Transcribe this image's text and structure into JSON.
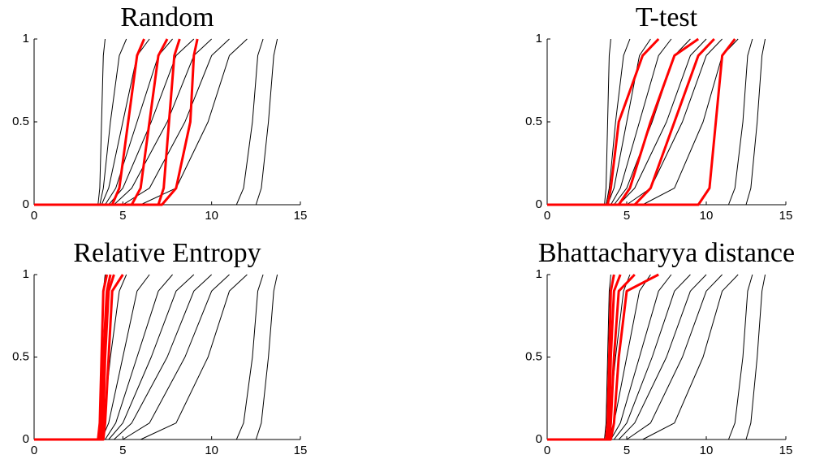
{
  "chart_data": [
    {
      "type": "line",
      "title": "Random",
      "xlim": [
        0,
        15
      ],
      "ylim": [
        0,
        1
      ],
      "xticks": [
        0,
        5,
        10,
        15
      ],
      "yticks": [
        0,
        0.5,
        1
      ],
      "series": [
        {
          "color": "#000000",
          "x": [
            0,
            3.6,
            3.7,
            3.8,
            3.9,
            4.0
          ],
          "values": [
            0,
            0,
            0.1,
            0.5,
            0.9,
            1
          ]
        },
        {
          "color": "#000000",
          "x": [
            0,
            3.7,
            3.9,
            4.3,
            4.8,
            5.2
          ],
          "values": [
            0,
            0,
            0.1,
            0.5,
            0.9,
            1
          ]
        },
        {
          "color": "#000000",
          "x": [
            0,
            3.8,
            4.2,
            5.0,
            5.8,
            6.5
          ],
          "values": [
            0,
            0,
            0.1,
            0.5,
            0.9,
            1
          ]
        },
        {
          "color": "#000000",
          "x": [
            0,
            4.0,
            4.6,
            5.8,
            7.0,
            7.8
          ],
          "values": [
            0,
            0,
            0.1,
            0.5,
            0.9,
            1
          ]
        },
        {
          "color": "#000000",
          "x": [
            0,
            4.2,
            5.0,
            6.6,
            8.0,
            9.0
          ],
          "values": [
            0,
            0,
            0.1,
            0.5,
            0.9,
            1
          ]
        },
        {
          "color": "#000000",
          "x": [
            0,
            4.5,
            5.5,
            7.5,
            9.0,
            10.0
          ],
          "values": [
            0,
            0,
            0.1,
            0.5,
            0.9,
            1
          ]
        },
        {
          "color": "#000000",
          "x": [
            0,
            5.0,
            6.5,
            8.5,
            10.0,
            11.0
          ],
          "values": [
            0,
            0,
            0.1,
            0.5,
            0.9,
            1
          ]
        },
        {
          "color": "#000000",
          "x": [
            0,
            6.0,
            8.0,
            9.8,
            11.0,
            12.0
          ],
          "values": [
            0,
            0,
            0.1,
            0.5,
            0.9,
            1
          ]
        },
        {
          "color": "#000000",
          "x": [
            0,
            11.4,
            11.8,
            12.3,
            12.6,
            12.9
          ],
          "values": [
            0,
            0,
            0.1,
            0.5,
            0.9,
            1
          ]
        },
        {
          "color": "#000000",
          "x": [
            0,
            12.5,
            12.8,
            13.2,
            13.5,
            13.7
          ],
          "values": [
            0,
            0,
            0.1,
            0.5,
            0.9,
            1
          ]
        },
        {
          "color": "#ff0000",
          "x": [
            0,
            4.4,
            4.8,
            5.3,
            5.8,
            6.2
          ],
          "values": [
            0,
            0,
            0.1,
            0.5,
            0.9,
            1
          ]
        },
        {
          "color": "#ff0000",
          "x": [
            0,
            5.5,
            6.0,
            6.5,
            7.0,
            7.5
          ],
          "values": [
            0,
            0,
            0.1,
            0.5,
            0.9,
            1
          ]
        },
        {
          "color": "#ff0000",
          "x": [
            0,
            7.0,
            7.3,
            7.6,
            7.9,
            8.2
          ],
          "values": [
            0,
            0,
            0.1,
            0.5,
            0.9,
            1
          ]
        },
        {
          "color": "#ff0000",
          "x": [
            0,
            7.2,
            8.0,
            8.8,
            9.0,
            9.2
          ],
          "values": [
            0,
            0,
            0.1,
            0.5,
            0.9,
            1
          ]
        }
      ]
    },
    {
      "type": "line",
      "title": "T-test",
      "xlim": [
        0,
        15
      ],
      "ylim": [
        0,
        1
      ],
      "xticks": [
        0,
        5,
        10,
        15
      ],
      "yticks": [
        0,
        0.5,
        1
      ],
      "series": [
        {
          "color": "#000000",
          "x": [
            0,
            3.6,
            3.7,
            3.8,
            3.9,
            4.0
          ],
          "values": [
            0,
            0,
            0.1,
            0.5,
            0.9,
            1
          ]
        },
        {
          "color": "#000000",
          "x": [
            0,
            3.7,
            3.9,
            4.3,
            4.8,
            5.2
          ],
          "values": [
            0,
            0,
            0.1,
            0.5,
            0.9,
            1
          ]
        },
        {
          "color": "#000000",
          "x": [
            0,
            3.8,
            4.2,
            5.0,
            5.8,
            6.5
          ],
          "values": [
            0,
            0,
            0.1,
            0.5,
            0.9,
            1
          ]
        },
        {
          "color": "#000000",
          "x": [
            0,
            4.0,
            4.6,
            5.8,
            7.0,
            7.8
          ],
          "values": [
            0,
            0,
            0.1,
            0.5,
            0.9,
            1
          ]
        },
        {
          "color": "#000000",
          "x": [
            0,
            4.2,
            5.0,
            6.6,
            8.0,
            9.0
          ],
          "values": [
            0,
            0,
            0.1,
            0.5,
            0.9,
            1
          ]
        },
        {
          "color": "#000000",
          "x": [
            0,
            4.5,
            5.5,
            7.5,
            9.0,
            10.0
          ],
          "values": [
            0,
            0,
            0.1,
            0.5,
            0.9,
            1
          ]
        },
        {
          "color": "#000000",
          "x": [
            0,
            5.0,
            6.5,
            8.5,
            10.0,
            11.0
          ],
          "values": [
            0,
            0,
            0.1,
            0.5,
            0.9,
            1
          ]
        },
        {
          "color": "#000000",
          "x": [
            0,
            6.0,
            8.0,
            9.8,
            11.0,
            12.0
          ],
          "values": [
            0,
            0,
            0.1,
            0.5,
            0.9,
            1
          ]
        },
        {
          "color": "#000000",
          "x": [
            0,
            11.4,
            11.8,
            12.3,
            12.6,
            12.9
          ],
          "values": [
            0,
            0,
            0.1,
            0.5,
            0.9,
            1
          ]
        },
        {
          "color": "#000000",
          "x": [
            0,
            12.5,
            12.8,
            13.2,
            13.5,
            13.7
          ],
          "values": [
            0,
            0,
            0.1,
            0.5,
            0.9,
            1
          ]
        },
        {
          "color": "#ff0000",
          "x": [
            0,
            3.8,
            4.0,
            4.5,
            6.0,
            7.0
          ],
          "values": [
            0,
            0,
            0.1,
            0.5,
            0.9,
            1
          ]
        },
        {
          "color": "#ff0000",
          "x": [
            0,
            4.5,
            5.2,
            6.5,
            8.0,
            9.5
          ],
          "values": [
            0,
            0,
            0.1,
            0.5,
            0.9,
            1
          ]
        },
        {
          "color": "#ff0000",
          "x": [
            0,
            5.5,
            6.5,
            8.0,
            9.5,
            10.5
          ],
          "values": [
            0,
            0,
            0.1,
            0.5,
            0.9,
            1
          ]
        },
        {
          "color": "#ff0000",
          "x": [
            0,
            9.5,
            10.2,
            10.6,
            11.0,
            11.8
          ],
          "values": [
            0,
            0,
            0.1,
            0.5,
            0.9,
            1
          ]
        }
      ]
    },
    {
      "type": "line",
      "title": "Relative Entropy",
      "xlim": [
        0,
        15
      ],
      "ylim": [
        0,
        1
      ],
      "xticks": [
        0,
        5,
        10,
        15
      ],
      "yticks": [
        0,
        0.5,
        1
      ],
      "series": [
        {
          "color": "#000000",
          "x": [
            0,
            3.6,
            3.7,
            3.8,
            3.9,
            4.0
          ],
          "values": [
            0,
            0,
            0.1,
            0.5,
            0.9,
            1
          ]
        },
        {
          "color": "#000000",
          "x": [
            0,
            3.7,
            3.9,
            4.3,
            4.8,
            5.2
          ],
          "values": [
            0,
            0,
            0.1,
            0.5,
            0.9,
            1
          ]
        },
        {
          "color": "#000000",
          "x": [
            0,
            3.8,
            4.2,
            5.0,
            5.8,
            6.5
          ],
          "values": [
            0,
            0,
            0.1,
            0.5,
            0.9,
            1
          ]
        },
        {
          "color": "#000000",
          "x": [
            0,
            4.0,
            4.6,
            5.8,
            7.0,
            7.8
          ],
          "values": [
            0,
            0,
            0.1,
            0.5,
            0.9,
            1
          ]
        },
        {
          "color": "#000000",
          "x": [
            0,
            4.2,
            5.0,
            6.6,
            8.0,
            9.0
          ],
          "values": [
            0,
            0,
            0.1,
            0.5,
            0.9,
            1
          ]
        },
        {
          "color": "#000000",
          "x": [
            0,
            4.5,
            5.5,
            7.5,
            9.0,
            10.0
          ],
          "values": [
            0,
            0,
            0.1,
            0.5,
            0.9,
            1
          ]
        },
        {
          "color": "#000000",
          "x": [
            0,
            5.0,
            6.5,
            8.5,
            10.0,
            11.0
          ],
          "values": [
            0,
            0,
            0.1,
            0.5,
            0.9,
            1
          ]
        },
        {
          "color": "#000000",
          "x": [
            0,
            6.0,
            8.0,
            9.8,
            11.0,
            12.0
          ],
          "values": [
            0,
            0,
            0.1,
            0.5,
            0.9,
            1
          ]
        },
        {
          "color": "#000000",
          "x": [
            0,
            11.4,
            11.8,
            12.3,
            12.6,
            12.9
          ],
          "values": [
            0,
            0,
            0.1,
            0.5,
            0.9,
            1
          ]
        },
        {
          "color": "#000000",
          "x": [
            0,
            12.5,
            12.8,
            13.2,
            13.5,
            13.7
          ],
          "values": [
            0,
            0,
            0.1,
            0.5,
            0.9,
            1
          ]
        },
        {
          "color": "#ff0000",
          "x": [
            0,
            3.6,
            3.7,
            3.8,
            3.9,
            4.1
          ],
          "values": [
            0,
            0,
            0.1,
            0.5,
            0.9,
            1
          ]
        },
        {
          "color": "#ff0000",
          "x": [
            0,
            3.7,
            3.8,
            3.9,
            4.1,
            4.3
          ],
          "values": [
            0,
            0,
            0.1,
            0.5,
            0.9,
            1
          ]
        },
        {
          "color": "#ff0000",
          "x": [
            0,
            3.8,
            3.9,
            4.0,
            4.2,
            4.5
          ],
          "values": [
            0,
            0,
            0.1,
            0.5,
            0.9,
            1
          ]
        },
        {
          "color": "#ff0000",
          "x": [
            0,
            3.9,
            4.0,
            4.2,
            4.4,
            5.0
          ],
          "values": [
            0,
            0,
            0.1,
            0.5,
            0.9,
            1
          ]
        }
      ]
    },
    {
      "type": "line",
      "title": "Bhattacharyya distance",
      "xlim": [
        0,
        15
      ],
      "ylim": [
        0,
        1
      ],
      "xticks": [
        0,
        5,
        10,
        15
      ],
      "yticks": [
        0,
        0.5,
        1
      ],
      "series": [
        {
          "color": "#000000",
          "x": [
            0,
            3.6,
            3.7,
            3.8,
            3.9,
            4.0
          ],
          "values": [
            0,
            0,
            0.1,
            0.5,
            0.9,
            1
          ]
        },
        {
          "color": "#000000",
          "x": [
            0,
            3.7,
            3.9,
            4.3,
            4.8,
            5.2
          ],
          "values": [
            0,
            0,
            0.1,
            0.5,
            0.9,
            1
          ]
        },
        {
          "color": "#000000",
          "x": [
            0,
            3.8,
            4.2,
            5.0,
            5.8,
            6.5
          ],
          "values": [
            0,
            0,
            0.1,
            0.5,
            0.9,
            1
          ]
        },
        {
          "color": "#000000",
          "x": [
            0,
            4.0,
            4.6,
            5.8,
            7.0,
            7.8
          ],
          "values": [
            0,
            0,
            0.1,
            0.5,
            0.9,
            1
          ]
        },
        {
          "color": "#000000",
          "x": [
            0,
            4.2,
            5.0,
            6.6,
            8.0,
            9.0
          ],
          "values": [
            0,
            0,
            0.1,
            0.5,
            0.9,
            1
          ]
        },
        {
          "color": "#000000",
          "x": [
            0,
            4.5,
            5.5,
            7.5,
            9.0,
            10.0
          ],
          "values": [
            0,
            0,
            0.1,
            0.5,
            0.9,
            1
          ]
        },
        {
          "color": "#000000",
          "x": [
            0,
            5.0,
            6.5,
            8.5,
            10.0,
            11.0
          ],
          "values": [
            0,
            0,
            0.1,
            0.5,
            0.9,
            1
          ]
        },
        {
          "color": "#000000",
          "x": [
            0,
            6.0,
            8.0,
            9.8,
            11.0,
            12.0
          ],
          "values": [
            0,
            0,
            0.1,
            0.5,
            0.9,
            1
          ]
        },
        {
          "color": "#000000",
          "x": [
            0,
            11.4,
            11.8,
            12.3,
            12.6,
            12.9
          ],
          "values": [
            0,
            0,
            0.1,
            0.5,
            0.9,
            1
          ]
        },
        {
          "color": "#000000",
          "x": [
            0,
            12.5,
            12.8,
            13.2,
            13.5,
            13.7
          ],
          "values": [
            0,
            0,
            0.1,
            0.5,
            0.9,
            1
          ]
        },
        {
          "color": "#ff0000",
          "x": [
            0,
            3.7,
            3.8,
            3.9,
            4.0,
            4.2
          ],
          "values": [
            0,
            0,
            0.1,
            0.5,
            0.9,
            1
          ]
        },
        {
          "color": "#ff0000",
          "x": [
            0,
            3.8,
            3.9,
            4.0,
            4.2,
            4.6
          ],
          "values": [
            0,
            0,
            0.1,
            0.5,
            0.9,
            1
          ]
        },
        {
          "color": "#ff0000",
          "x": [
            0,
            3.9,
            4.0,
            4.2,
            4.5,
            5.5
          ],
          "values": [
            0,
            0,
            0.1,
            0.5,
            0.9,
            1
          ]
        },
        {
          "color": "#ff0000",
          "x": [
            0,
            4.0,
            4.2,
            4.5,
            5.0,
            7.0
          ],
          "values": [
            0,
            0,
            0.1,
            0.5,
            0.9,
            1
          ]
        }
      ]
    }
  ]
}
